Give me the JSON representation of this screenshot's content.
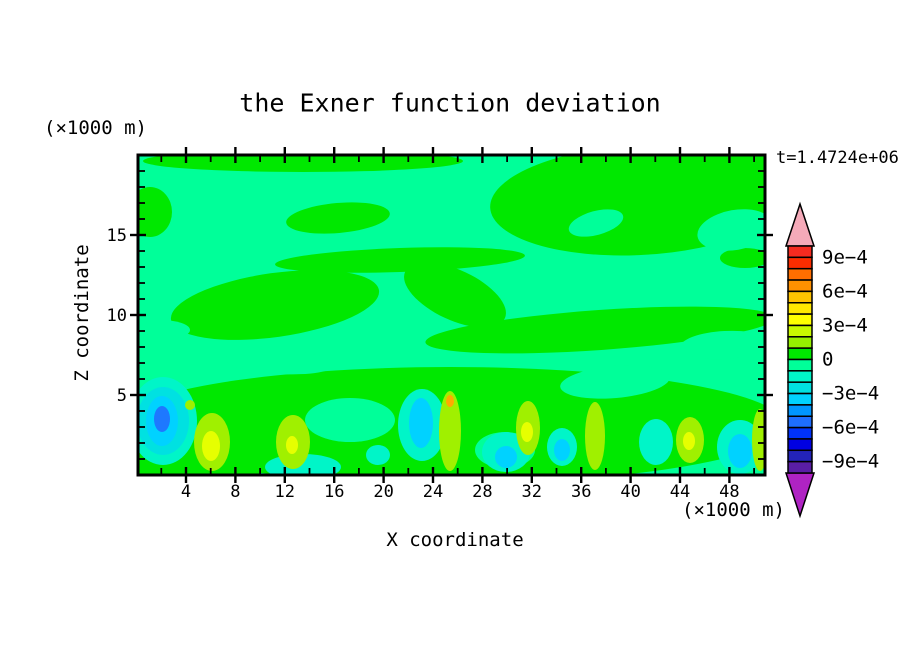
{
  "page": {
    "background": "#FFFFFF"
  },
  "chart_data": {
    "type": "heatmap",
    "title": "the Exner function deviation",
    "time_annotation": "t=1.4724e+06",
    "xlabel": "X coordinate",
    "ylabel": "Z coordinate",
    "x_unit": "(×1000 m)",
    "y_unit": "(×1000 m)",
    "xlim": [
      0,
      51
    ],
    "ylim": [
      0,
      20
    ],
    "x_major_ticks": [
      4,
      8,
      12,
      16,
      20,
      24,
      28,
      32,
      36,
      40,
      44,
      48
    ],
    "x_minor_ticks": [
      2,
      6,
      10,
      14,
      18,
      22,
      26,
      30,
      34,
      38,
      42,
      46,
      50
    ],
    "y_major_ticks": [
      5,
      10,
      15
    ],
    "y_minor_ticks": [
      1,
      2,
      3,
      4,
      6,
      7,
      8,
      9,
      11,
      12,
      13,
      14,
      16,
      17,
      18,
      19
    ],
    "contour_interval": "1e−4",
    "contour_range": "−1e−3 to 1e−3",
    "colorbar": {
      "segment_colors_top_to_bottom": [
        "#F52B20",
        "#FC2D00",
        "#FF6E00",
        "#FF9100",
        "#FFC300",
        "#FFE800",
        "#FFFF00",
        "#C8FA00",
        "#96F000",
        "#00E800",
        "#00FF99",
        "#00F5C8",
        "#00E1E1",
        "#00D2FF",
        "#0096FF",
        "#1E6EFF",
        "#0032FA",
        "#0000E1",
        "#2323B9",
        "#5A1EA5"
      ],
      "arrow_top_color": "#F5AAB9",
      "arrow_bottom_color": "#AF23C3",
      "border_color": "#000000",
      "ticks": [
        {
          "label": "9e−4",
          "after_segment": 1
        },
        {
          "label": "6e−4",
          "after_segment": 4
        },
        {
          "label": "3e−4",
          "after_segment": 7
        },
        {
          "label": "0",
          "after_segment": 10
        },
        {
          "label": "−3e−4",
          "after_segment": 13
        },
        {
          "label": "−6e−4",
          "after_segment": 16
        },
        {
          "label": "−9e−4",
          "after_segment": 19
        }
      ]
    },
    "field": {
      "background_color": "#00FF99",
      "background_level": "−1e−4 to 0",
      "note": "feature ellipses in plot-local px, plot area 627x320 = x 0..51 km, z 0..20 km",
      "features": [
        {
          "level": "0 to 1e−4",
          "fill": "#00E800",
          "cx": 165,
          "cy": 6,
          "rx": 160,
          "ry": 11,
          "rot": 0
        },
        {
          "level": "0 to 1e−4",
          "fill": "#00E800",
          "cx": 502,
          "cy": 45,
          "rx": 150,
          "ry": 55,
          "rot": -3
        },
        {
          "level": "0 to 1e−4",
          "fill": "#00E800",
          "cx": 622,
          "cy": 30,
          "rx": 45,
          "ry": 40,
          "rot": 0
        },
        {
          "level": "0 to 1e−4",
          "fill": "#00E800",
          "cx": 12,
          "cy": 57,
          "rx": 22,
          "ry": 25,
          "rot": 0
        },
        {
          "level": "0 to 1e−4",
          "fill": "#00E800",
          "cx": 200,
          "cy": 63,
          "rx": 52,
          "ry": 15,
          "rot": -5
        },
        {
          "level": "0 to 1e−4",
          "fill": "#00E800",
          "cx": 262,
          "cy": 105,
          "rx": 125,
          "ry": 12,
          "rot": -2
        },
        {
          "level": "0 to 1e−4",
          "fill": "#00E800",
          "cx": 137,
          "cy": 150,
          "rx": 105,
          "ry": 32,
          "rot": -8
        },
        {
          "level": "0 to 1e−4",
          "fill": "#00E800",
          "cx": 317,
          "cy": 140,
          "rx": 55,
          "ry": 25,
          "rot": 25
        },
        {
          "level": "0 to 1e−4",
          "fill": "#00E800",
          "cx": 462,
          "cy": 175,
          "rx": 175,
          "ry": 20,
          "rot": -4
        },
        {
          "level": "0 to 1e−4",
          "fill": "#00E800",
          "cx": 607,
          "cy": 103,
          "rx": 25,
          "ry": 10,
          "rot": 0
        },
        {
          "level": "0 to 1e−4",
          "fill": "#00E800",
          "cx": 312,
          "cy": 270,
          "rx": 335,
          "ry": 58,
          "rot": 0
        },
        {
          "level": "0 to 1e−4",
          "fill": "#00E800",
          "cx": 62,
          "cy": 285,
          "rx": 90,
          "ry": 45,
          "rot": 0
        },
        {
          "level": "−1e−4 to 0",
          "fill": "#00FF99",
          "cx": 458,
          "cy": 68,
          "rx": 28,
          "ry": 12,
          "rot": -15
        },
        {
          "level": "−1e−4 to 0",
          "fill": "#00FF99",
          "cx": 597,
          "cy": 75,
          "rx": 38,
          "ry": 20,
          "rot": -10
        },
        {
          "level": "−1e−4 to 0",
          "fill": "#00FF99",
          "cx": 477,
          "cy": 227,
          "rx": 55,
          "ry": 16,
          "rot": -5
        },
        {
          "level": "−1e−4 to 0",
          "fill": "#00FF99",
          "cx": 587,
          "cy": 190,
          "rx": 45,
          "ry": 14,
          "rot": -3
        },
        {
          "level": "−1e−4 to 0",
          "fill": "#00FF99",
          "cx": 142,
          "cy": 207,
          "rx": 55,
          "ry": 12,
          "rot": 3
        },
        {
          "level": "−1e−4 to 0",
          "fill": "#00FF99",
          "cx": 212,
          "cy": 265,
          "rx": 45,
          "ry": 22,
          "rot": 0
        },
        {
          "level": "−1e−4 to 0",
          "fill": "#00FF99",
          "cx": 367,
          "cy": 295,
          "rx": 30,
          "ry": 18,
          "rot": 0
        },
        {
          "level": "−1e−4 to 0",
          "fill": "#00FF99",
          "cx": 22,
          "cy": 175,
          "rx": 30,
          "ry": 10,
          "rot": 0
        },
        {
          "level": "−2e−4 to −1e−4",
          "fill": "#00F5C8",
          "cx": 25,
          "cy": 266,
          "rx": 34,
          "ry": 44,
          "rot": 0
        },
        {
          "level": "−3e−4 to −2e−4",
          "fill": "#00E1E1",
          "cx": 25,
          "cy": 266,
          "rx": 26,
          "ry": 34,
          "rot": 0
        },
        {
          "level": "−2e−4 to −1e−4",
          "fill": "#00F5C8",
          "cx": 284,
          "cy": 270,
          "rx": 24,
          "ry": 36,
          "rot": 0
        },
        {
          "level": "−2e−4 to −1e−4",
          "fill": "#00F5C8",
          "cx": 368,
          "cy": 297,
          "rx": 24,
          "ry": 20,
          "rot": 0
        },
        {
          "level": "−2e−4 to −1e−4",
          "fill": "#00F5C8",
          "cx": 424,
          "cy": 292,
          "rx": 15,
          "ry": 19,
          "rot": 0
        },
        {
          "level": "−2e−4 to −1e−4",
          "fill": "#00F5C8",
          "cx": 518,
          "cy": 287,
          "rx": 17,
          "ry": 23,
          "rot": 0
        },
        {
          "level": "−2e−4 to −1e−4",
          "fill": "#00F5C8",
          "cx": 602,
          "cy": 292,
          "rx": 23,
          "ry": 27,
          "rot": 0
        },
        {
          "level": "−2e−4 to −1e−4",
          "fill": "#00F5C8",
          "cx": 165,
          "cy": 312,
          "rx": 38,
          "ry": 13,
          "rot": 0
        },
        {
          "level": "−2e−4 to −1e−4",
          "fill": "#00F5C8",
          "cx": 240,
          "cy": 300,
          "rx": 12,
          "ry": 10,
          "rot": 0
        },
        {
          "level": "1e−4 to 3e−4",
          "fill": "#A0F000",
          "cx": 74,
          "cy": 287,
          "rx": 18,
          "ry": 29,
          "rot": 0
        },
        {
          "level": "1e−4 to 3e−4",
          "fill": "#A0F000",
          "cx": 155,
          "cy": 287,
          "rx": 17,
          "ry": 27,
          "rot": 0
        },
        {
          "level": "1e−4 to 3e−4",
          "fill": "#A0F000",
          "cx": 312,
          "cy": 276,
          "rx": 11,
          "ry": 40,
          "rot": 0
        },
        {
          "level": "1e−4 to 3e−4",
          "fill": "#A0F000",
          "cx": 390,
          "cy": 273,
          "rx": 12,
          "ry": 27,
          "rot": 0
        },
        {
          "level": "1e−4 to 3e−4",
          "fill": "#A0F000",
          "cx": 457,
          "cy": 281,
          "rx": 10,
          "ry": 34,
          "rot": 0
        },
        {
          "level": "1e−4 to 3e−4",
          "fill": "#A0F000",
          "cx": 552,
          "cy": 285,
          "rx": 14,
          "ry": 23,
          "rot": 0
        },
        {
          "level": "1e−4 to 3e−4",
          "fill": "#A0F000",
          "cx": 622,
          "cy": 285,
          "rx": 8,
          "ry": 31,
          "rot": 0
        },
        {
          "level": "1e−4 to 3e−4",
          "fill": "#A0F000",
          "cx": 52,
          "cy": 250,
          "rx": 5,
          "ry": 5,
          "rot": 0
        },
        {
          "level": "−4e−4 to −3e−4",
          "fill": "#00D2FF",
          "cx": 24,
          "cy": 266,
          "rx": 16,
          "ry": 25,
          "rot": 0
        },
        {
          "level": "−4e−4 to −3e−4",
          "fill": "#00D2FF",
          "cx": 283,
          "cy": 268,
          "rx": 12,
          "ry": 25,
          "rot": 0
        },
        {
          "level": "−4e−4 to −3e−4",
          "fill": "#00D2FF",
          "cx": 602,
          "cy": 296,
          "rx": 12,
          "ry": 17,
          "rot": 0
        },
        {
          "level": "−4e−4 to −3e−4",
          "fill": "#00D2FF",
          "cx": 424,
          "cy": 295,
          "rx": 8,
          "ry": 11,
          "rot": 0
        },
        {
          "level": "−4e−4 to −3e−4",
          "fill": "#00D2FF",
          "cx": 368,
          "cy": 302,
          "rx": 11,
          "ry": 11,
          "rot": 0
        },
        {
          "level": "−6e−4 to −5e−4",
          "fill": "#1E78FF",
          "cx": 24,
          "cy": 264,
          "rx": 8,
          "ry": 13,
          "rot": 0
        },
        {
          "level": "3e−4 to 4e−4",
          "fill": "#E6FF00",
          "cx": 73,
          "cy": 291,
          "rx": 9,
          "ry": 15,
          "rot": 0
        },
        {
          "level": "3e−4 to 4e−4",
          "fill": "#E6FF00",
          "cx": 154,
          "cy": 290,
          "rx": 6,
          "ry": 9,
          "rot": 0
        },
        {
          "level": "3e−4 to 4e−4",
          "fill": "#E6FF00",
          "cx": 389,
          "cy": 277,
          "rx": 6,
          "ry": 10,
          "rot": 0
        },
        {
          "level": "3e−4 to 4e−4",
          "fill": "#E6FF00",
          "cx": 551,
          "cy": 286,
          "rx": 6,
          "ry": 9,
          "rot": 0
        },
        {
          "level": "5e−4 to 6e−4",
          "fill": "#FFAA00",
          "cx": 312,
          "cy": 246,
          "rx": 4,
          "ry": 6,
          "rot": 0
        }
      ]
    }
  }
}
